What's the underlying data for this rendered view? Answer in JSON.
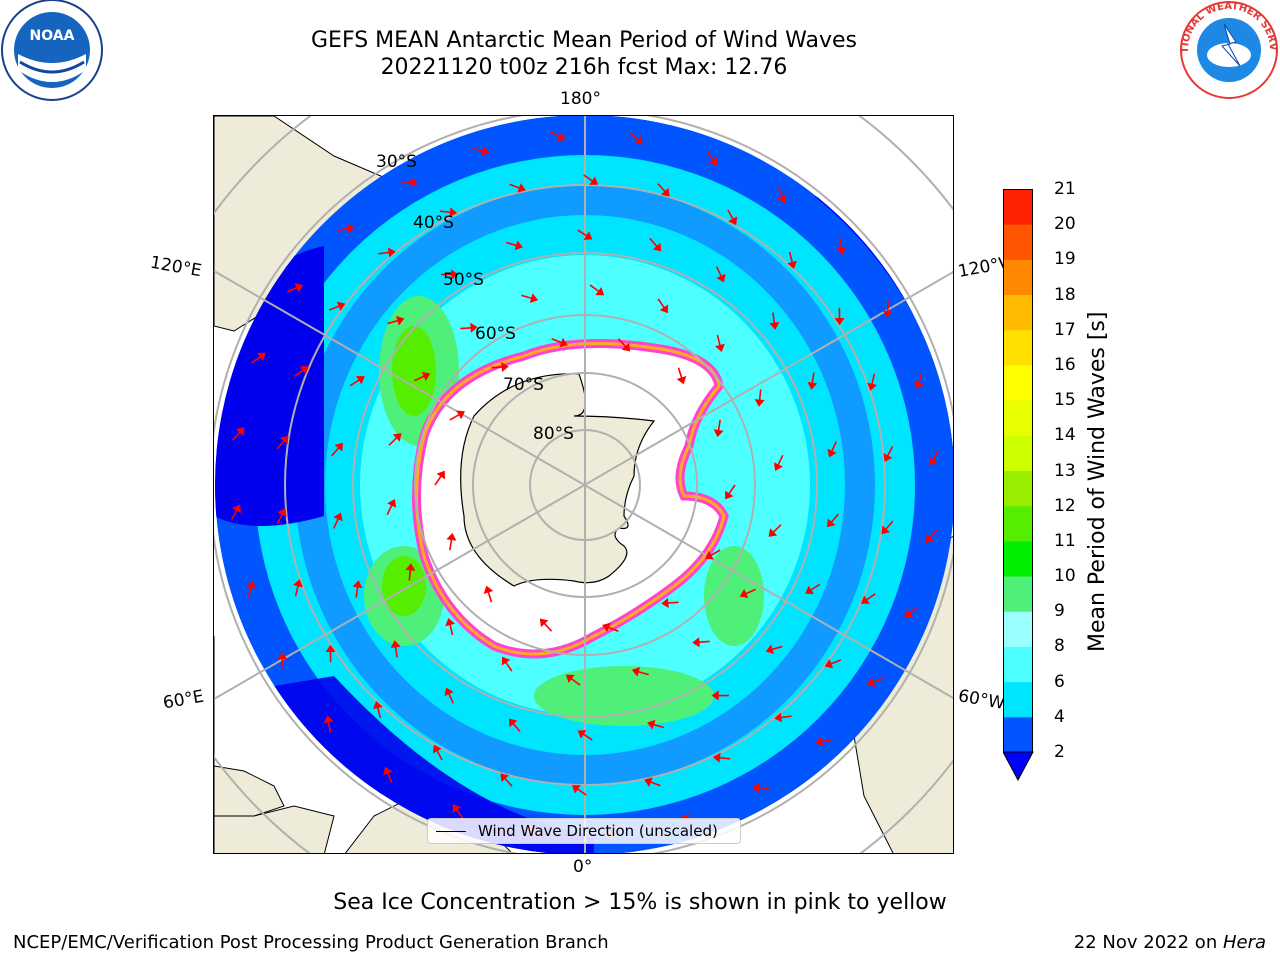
{
  "title": {
    "line1": "GEFS MEAN Antarctic Mean Period of Wind Waves",
    "line2": "20221120 t00z 216h fcst   Max: 12.76"
  },
  "logos": {
    "left_text": "NOAA",
    "right_text": "NATIONAL WEATHER SERVICE"
  },
  "map": {
    "longitude_labels": {
      "top": "180°",
      "bottom": "0°",
      "upper_left": "120°E",
      "upper_right": "120°W",
      "lower_left": "60°E",
      "lower_right": "60°W"
    },
    "latitude_labels": [
      "30°S",
      "40°S",
      "50°S",
      "60°S",
      "70°S",
      "80°S"
    ],
    "legend_label": "Wind Wave Direction (unscaled)",
    "colors": {
      "land": "#eeecd8",
      "arrow": "#ff0000",
      "gridline": "#b0b0b0"
    }
  },
  "colorbar": {
    "label": "Mean Period of Wind Waves [s]",
    "ticks": [
      "2",
      "4",
      "6",
      "8",
      "9",
      "10",
      "11",
      "12",
      "13",
      "14",
      "15",
      "16",
      "17",
      "18",
      "19",
      "20",
      "21"
    ],
    "colors": [
      "#0055ff",
      "#00e5ff",
      "#4dffff",
      "#99ffff",
      "#4ef07a",
      "#00ee00",
      "#55ee00",
      "#99ee00",
      "#ccff00",
      "#e8ff00",
      "#ffff00",
      "#ffe000",
      "#ffbb00",
      "#ff8800",
      "#ff5500",
      "#ff2200"
    ],
    "underflow_color": "#0000ff"
  },
  "caption": "Sea Ice Concentration > 15% is shown in pink to yellow",
  "footer": {
    "left": "NCEP/EMC/Verification Post Processing Product Generation Branch",
    "right_date": "22 Nov 2022 on ",
    "right_machine": "Hera"
  }
}
